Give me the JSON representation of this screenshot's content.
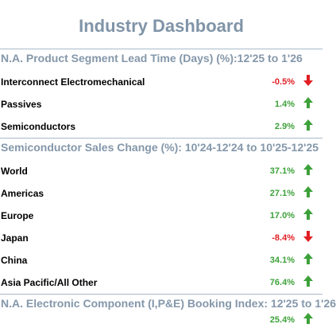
{
  "title": "Industry Dashboard",
  "sections": [
    {
      "heading": "N.A. Product Segment Lead Time (Days) (%):12'25 to 1'26",
      "rows": [
        {
          "label": "Interconnect Electromechanical",
          "value": "-0.5%",
          "trend": "down"
        },
        {
          "label": "Passives",
          "value": "1.4%",
          "trend": "up"
        },
        {
          "label": "Semiconductors",
          "value": "2.9%",
          "trend": "up"
        }
      ]
    },
    {
      "heading": "Semiconductor Sales Change (%): 10'24-12'24 to 10'25-12'25",
      "rows": [
        {
          "label": "World",
          "value": "37.1%",
          "trend": "up"
        },
        {
          "label": "Americas",
          "value": "27.1%",
          "trend": "up"
        },
        {
          "label": "Europe",
          "value": "17.0%",
          "trend": "up"
        },
        {
          "label": "Japan",
          "value": "-8.4%",
          "trend": "down"
        },
        {
          "label": "China",
          "value": "34.1%",
          "trend": "up"
        },
        {
          "label": "Asia Pacific/All Other",
          "value": "76.4%",
          "trend": "up"
        }
      ]
    },
    {
      "heading": "N.A. Electronic Component (I,P&E) Booking Index: 12'25 to 1'26",
      "rows": [
        {
          "label": "",
          "value": "25.4%",
          "trend": "up"
        }
      ]
    }
  ],
  "colors": {
    "up": "#3da13a",
    "down": "#e11e23",
    "heading": "#8497aa",
    "title": "#8094a8"
  },
  "icons": {
    "up": "arrow-up-icon",
    "down": "arrow-down-icon"
  }
}
